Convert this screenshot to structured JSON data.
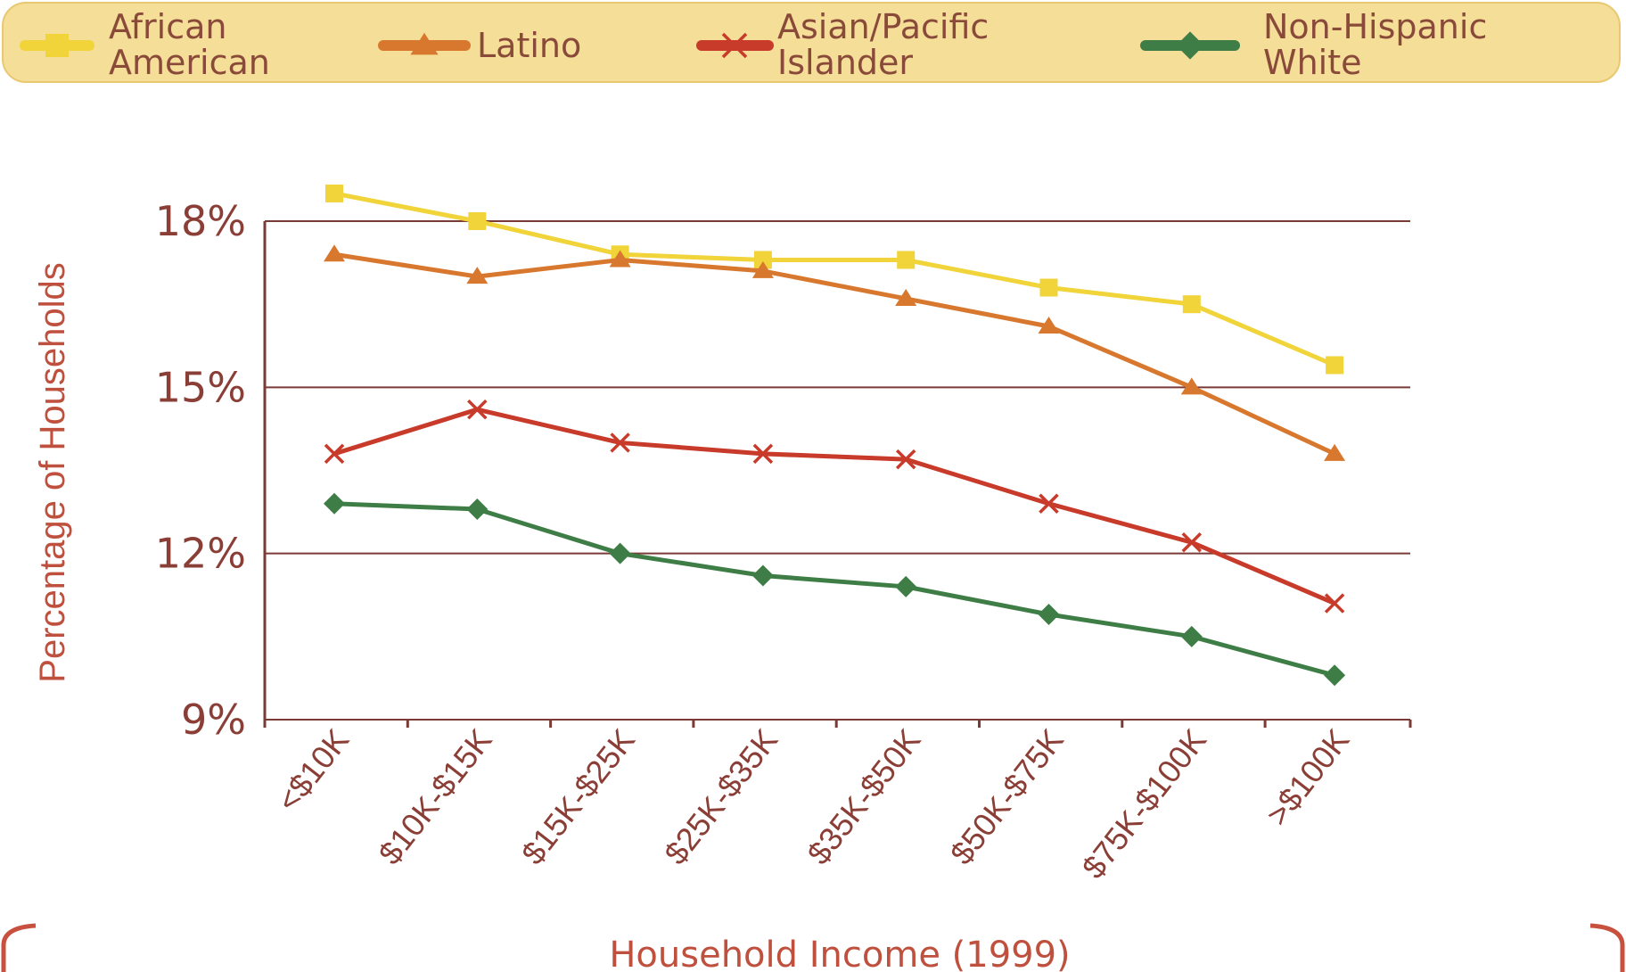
{
  "chart_data": {
    "type": "line",
    "title": "",
    "xlabel": "Household Income (1999)",
    "ylabel": "Percentage of Households",
    "categories": [
      "<$10K",
      "$10K-$15K",
      "$15K-$25K",
      "$25K-$35K",
      "$35K-$50K",
      "$50K-$75K",
      "$75K-$100K",
      ">$100K"
    ],
    "ylim": [
      9,
      18
    ],
    "yticks": [
      "9%",
      "12%",
      "15%",
      "18%"
    ],
    "ytick_values": [
      9,
      12,
      15,
      18
    ],
    "grid": "horizontal",
    "legend_position": "top",
    "series": [
      {
        "name": "African American",
        "legend_lines": [
          "African",
          "American"
        ],
        "marker": "square",
        "color": "#f0d43a",
        "values": [
          18.5,
          18.0,
          17.4,
          17.3,
          17.3,
          16.8,
          16.5,
          15.4
        ]
      },
      {
        "name": "Latino",
        "legend_lines": [
          "Latino"
        ],
        "marker": "triangle",
        "color": "#d8782e",
        "values": [
          17.4,
          17.0,
          17.3,
          17.1,
          16.6,
          16.1,
          15.0,
          13.8
        ]
      },
      {
        "name": "Asian/Pacific Islander",
        "legend_lines": [
          "Asian/Pacific",
          "Islander"
        ],
        "marker": "x",
        "color": "#c83a2a",
        "values": [
          13.8,
          14.6,
          14.0,
          13.8,
          13.7,
          12.9,
          12.2,
          11.1
        ]
      },
      {
        "name": "Non-Hispanic White",
        "legend_lines": [
          "Non-Hispanic",
          "White"
        ],
        "marker": "diamond",
        "color": "#3e7e46",
        "values": [
          12.9,
          12.8,
          12.0,
          11.6,
          11.4,
          10.9,
          10.5,
          9.8
        ]
      }
    ],
    "colors": {
      "axis": "#7a3a36",
      "grid": "#7a3a36",
      "legend_background": "#f4de98",
      "frame": "#c8503e"
    }
  }
}
